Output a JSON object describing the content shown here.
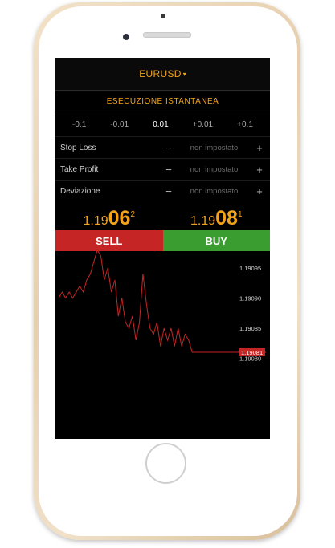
{
  "header": {
    "symbol": "EURUSD",
    "caret": "▾"
  },
  "execution": {
    "title": "ESECUZIONE ISTANTANEA"
  },
  "volumes": [
    "-0.1",
    "-0.01",
    "0.01",
    "+0.01",
    "+0.1"
  ],
  "selected_volume_index": 2,
  "params": [
    {
      "label": "Stop Loss",
      "minus": "−",
      "value": "non impostato",
      "plus": "+"
    },
    {
      "label": "Take Profit",
      "minus": "−",
      "value": "non impostato",
      "plus": "+"
    },
    {
      "label": "Deviazione",
      "minus": "−",
      "value": "non impostato",
      "plus": "+"
    }
  ],
  "prices": {
    "sell": {
      "prefix": "1.19",
      "big": "06",
      "sup": "2"
    },
    "buy": {
      "prefix": "1.19",
      "big": "08",
      "sup": "1"
    }
  },
  "buttons": {
    "sell": "SELL",
    "buy": "BUY"
  },
  "colors": {
    "accent": "#f2a31b",
    "sell": "#c62525",
    "buy": "#3a9d2f",
    "line": "#c62525"
  },
  "chart_data": {
    "type": "line",
    "ylim": [
      1.19079,
      1.19099
    ],
    "ticks": [
      "1.19095",
      "1.19090",
      "1.19085",
      "1.19080"
    ],
    "current_label": "1.19081",
    "current_value": 1.19081,
    "values": [
      1.1909,
      1.19091,
      1.1909,
      1.19091,
      1.1909,
      1.19091,
      1.19092,
      1.19091,
      1.19093,
      1.19094,
      1.19096,
      1.19098,
      1.19097,
      1.19093,
      1.19095,
      1.19091,
      1.19093,
      1.19087,
      1.1909,
      1.19086,
      1.19085,
      1.19087,
      1.19083,
      1.19086,
      1.19094,
      1.19089,
      1.19085,
      1.19084,
      1.19086,
      1.19082,
      1.19085,
      1.19083,
      1.19085,
      1.19082,
      1.19085,
      1.19082,
      1.19084,
      1.19083,
      1.19081,
      1.19081,
      1.19081,
      1.19081,
      1.19081,
      1.19081,
      1.19081,
      1.19081,
      1.19081,
      1.19081,
      1.19081,
      1.19081,
      1.19081,
      1.19081,
      1.19081,
      1.19081,
      1.19081,
      1.19081,
      1.19081,
      1.19081,
      1.19081,
      1.19081
    ]
  }
}
